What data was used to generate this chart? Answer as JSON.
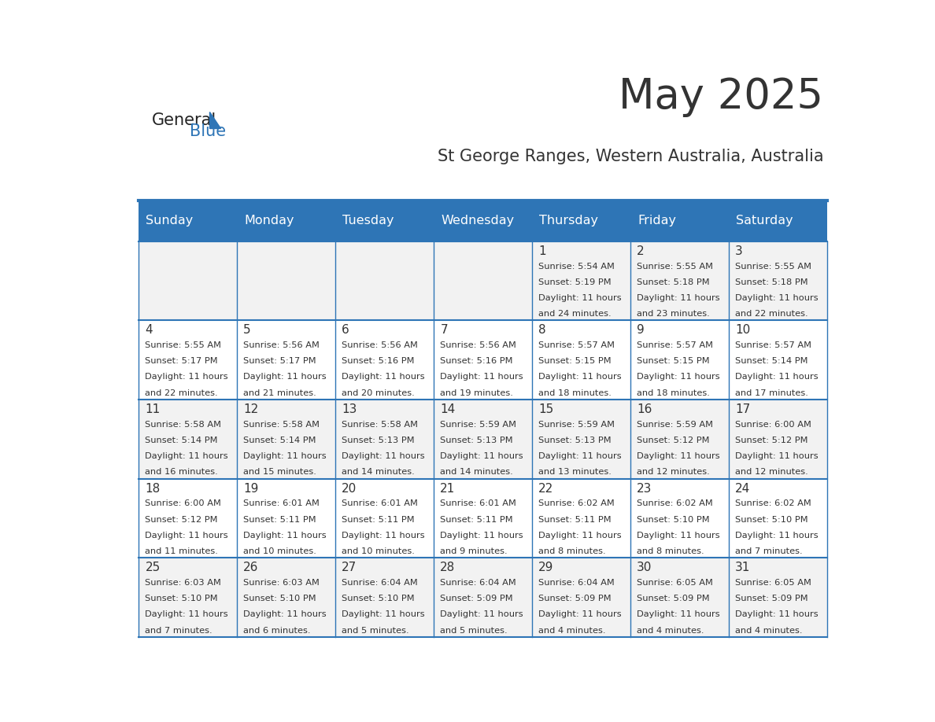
{
  "title": "May 2025",
  "subtitle": "St George Ranges, Western Australia, Australia",
  "days_of_week": [
    "Sunday",
    "Monday",
    "Tuesday",
    "Wednesday",
    "Thursday",
    "Friday",
    "Saturday"
  ],
  "header_bg": "#2E75B6",
  "header_text": "#FFFFFF",
  "odd_row_bg": "#F2F2F2",
  "even_row_bg": "#FFFFFF",
  "cell_text_color": "#333333",
  "day_num_color": "#333333",
  "border_color": "#2E75B6",
  "title_color": "#333333",
  "subtitle_color": "#333333",
  "logo_general_color": "#222222",
  "logo_blue_color": "#2E75B6",
  "calendar_data": [
    [
      {
        "day": 0,
        "sunrise": "",
        "sunset": "",
        "daylight": ""
      },
      {
        "day": 0,
        "sunrise": "",
        "sunset": "",
        "daylight": ""
      },
      {
        "day": 0,
        "sunrise": "",
        "sunset": "",
        "daylight": ""
      },
      {
        "day": 0,
        "sunrise": "",
        "sunset": "",
        "daylight": ""
      },
      {
        "day": 1,
        "sunrise": "5:54 AM",
        "sunset": "5:19 PM",
        "daylight": "11 hours and 24 minutes."
      },
      {
        "day": 2,
        "sunrise": "5:55 AM",
        "sunset": "5:18 PM",
        "daylight": "11 hours and 23 minutes."
      },
      {
        "day": 3,
        "sunrise": "5:55 AM",
        "sunset": "5:18 PM",
        "daylight": "11 hours and 22 minutes."
      }
    ],
    [
      {
        "day": 4,
        "sunrise": "5:55 AM",
        "sunset": "5:17 PM",
        "daylight": "11 hours and 22 minutes."
      },
      {
        "day": 5,
        "sunrise": "5:56 AM",
        "sunset": "5:17 PM",
        "daylight": "11 hours and 21 minutes."
      },
      {
        "day": 6,
        "sunrise": "5:56 AM",
        "sunset": "5:16 PM",
        "daylight": "11 hours and 20 minutes."
      },
      {
        "day": 7,
        "sunrise": "5:56 AM",
        "sunset": "5:16 PM",
        "daylight": "11 hours and 19 minutes."
      },
      {
        "day": 8,
        "sunrise": "5:57 AM",
        "sunset": "5:15 PM",
        "daylight": "11 hours and 18 minutes."
      },
      {
        "day": 9,
        "sunrise": "5:57 AM",
        "sunset": "5:15 PM",
        "daylight": "11 hours and 18 minutes."
      },
      {
        "day": 10,
        "sunrise": "5:57 AM",
        "sunset": "5:14 PM",
        "daylight": "11 hours and 17 minutes."
      }
    ],
    [
      {
        "day": 11,
        "sunrise": "5:58 AM",
        "sunset": "5:14 PM",
        "daylight": "11 hours and 16 minutes."
      },
      {
        "day": 12,
        "sunrise": "5:58 AM",
        "sunset": "5:14 PM",
        "daylight": "11 hours and 15 minutes."
      },
      {
        "day": 13,
        "sunrise": "5:58 AM",
        "sunset": "5:13 PM",
        "daylight": "11 hours and 14 minutes."
      },
      {
        "day": 14,
        "sunrise": "5:59 AM",
        "sunset": "5:13 PM",
        "daylight": "11 hours and 14 minutes."
      },
      {
        "day": 15,
        "sunrise": "5:59 AM",
        "sunset": "5:13 PM",
        "daylight": "11 hours and 13 minutes."
      },
      {
        "day": 16,
        "sunrise": "5:59 AM",
        "sunset": "5:12 PM",
        "daylight": "11 hours and 12 minutes."
      },
      {
        "day": 17,
        "sunrise": "6:00 AM",
        "sunset": "5:12 PM",
        "daylight": "11 hours and 12 minutes."
      }
    ],
    [
      {
        "day": 18,
        "sunrise": "6:00 AM",
        "sunset": "5:12 PM",
        "daylight": "11 hours and 11 minutes."
      },
      {
        "day": 19,
        "sunrise": "6:01 AM",
        "sunset": "5:11 PM",
        "daylight": "11 hours and 10 minutes."
      },
      {
        "day": 20,
        "sunrise": "6:01 AM",
        "sunset": "5:11 PM",
        "daylight": "11 hours and 10 minutes."
      },
      {
        "day": 21,
        "sunrise": "6:01 AM",
        "sunset": "5:11 PM",
        "daylight": "11 hours and 9 minutes."
      },
      {
        "day": 22,
        "sunrise": "6:02 AM",
        "sunset": "5:11 PM",
        "daylight": "11 hours and 8 minutes."
      },
      {
        "day": 23,
        "sunrise": "6:02 AM",
        "sunset": "5:10 PM",
        "daylight": "11 hours and 8 minutes."
      },
      {
        "day": 24,
        "sunrise": "6:02 AM",
        "sunset": "5:10 PM",
        "daylight": "11 hours and 7 minutes."
      }
    ],
    [
      {
        "day": 25,
        "sunrise": "6:03 AM",
        "sunset": "5:10 PM",
        "daylight": "11 hours and 7 minutes."
      },
      {
        "day": 26,
        "sunrise": "6:03 AM",
        "sunset": "5:10 PM",
        "daylight": "11 hours and 6 minutes."
      },
      {
        "day": 27,
        "sunrise": "6:04 AM",
        "sunset": "5:10 PM",
        "daylight": "11 hours and 5 minutes."
      },
      {
        "day": 28,
        "sunrise": "6:04 AM",
        "sunset": "5:09 PM",
        "daylight": "11 hours and 5 minutes."
      },
      {
        "day": 29,
        "sunrise": "6:04 AM",
        "sunset": "5:09 PM",
        "daylight": "11 hours and 4 minutes."
      },
      {
        "day": 30,
        "sunrise": "6:05 AM",
        "sunset": "5:09 PM",
        "daylight": "11 hours and 4 minutes."
      },
      {
        "day": 31,
        "sunrise": "6:05 AM",
        "sunset": "5:09 PM",
        "daylight": "11 hours and 4 minutes."
      }
    ]
  ]
}
